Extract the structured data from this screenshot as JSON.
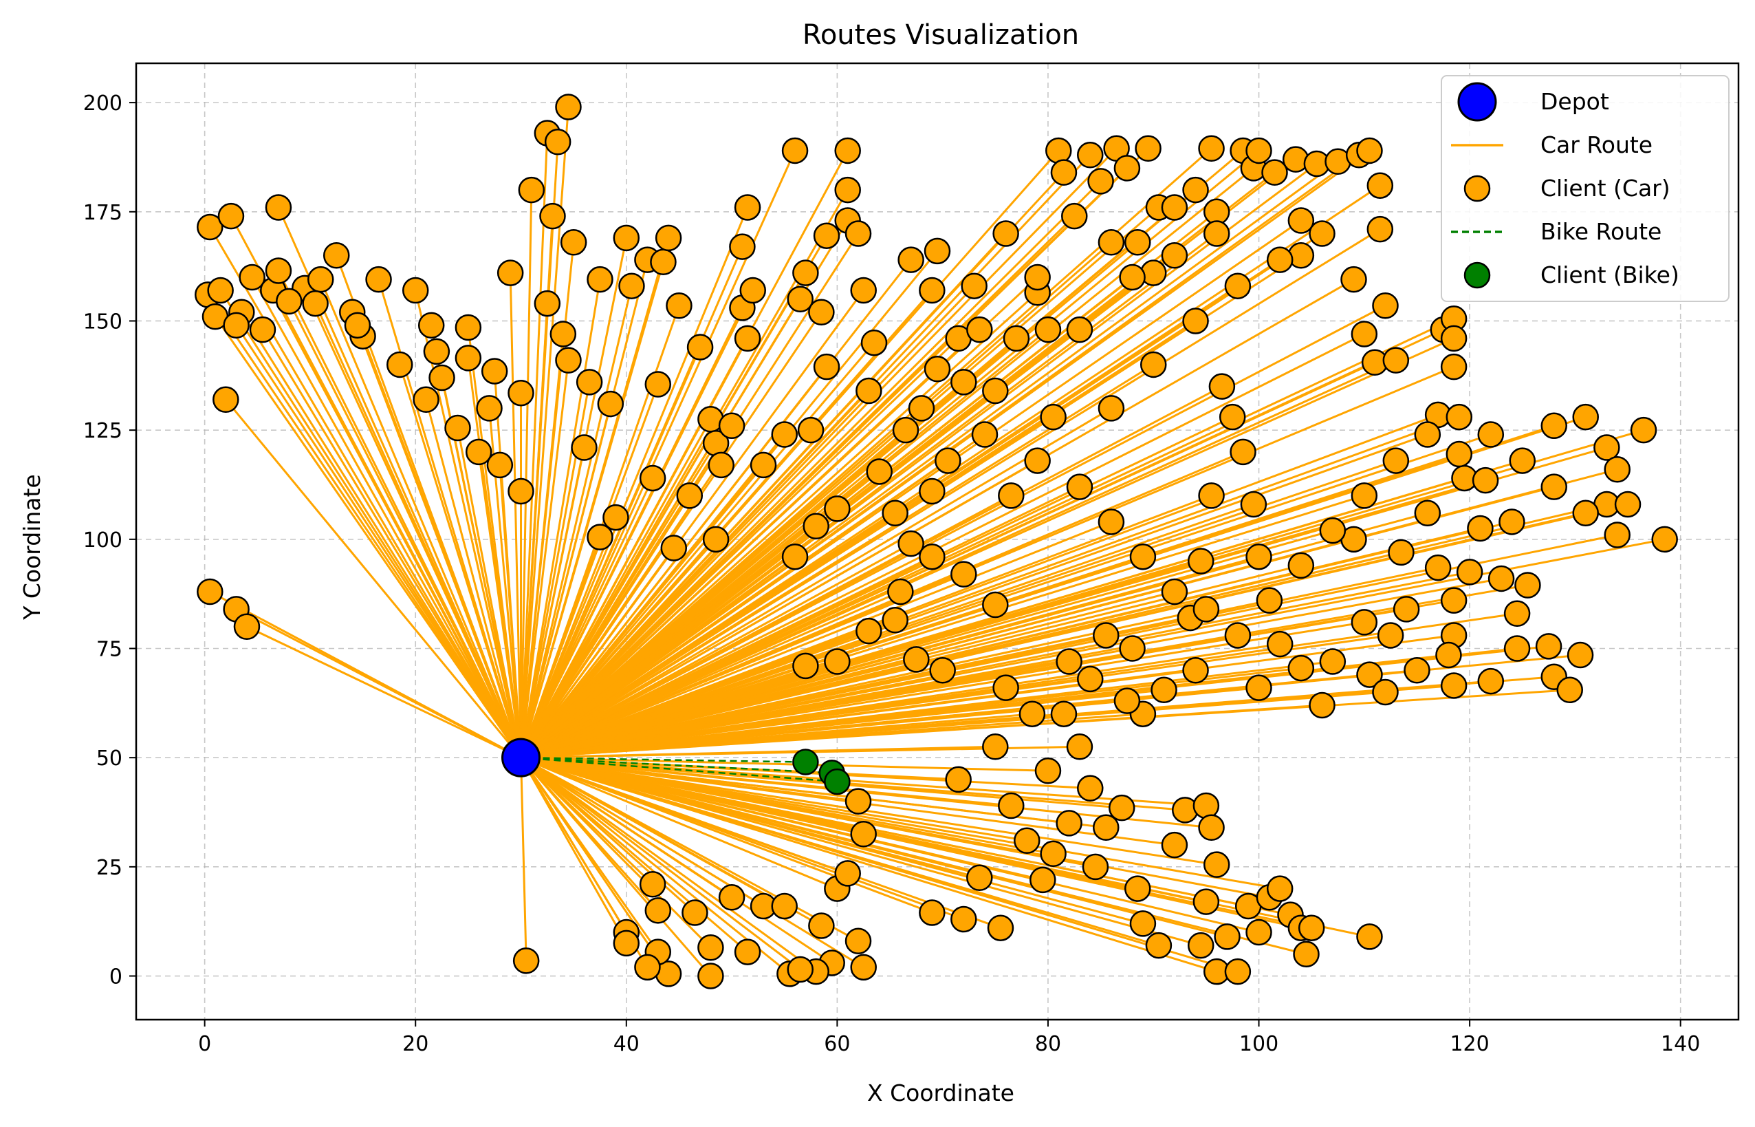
{
  "chart_data": {
    "type": "scatter",
    "title": "Routes Visualization",
    "xlabel": "X Coordinate",
    "ylabel": "Y Coordinate",
    "xlim": [
      -6.5,
      145.5
    ],
    "ylim": [
      -10,
      209
    ],
    "xticks": [
      0,
      20,
      40,
      60,
      80,
      100,
      120,
      140
    ],
    "yticks": [
      0,
      25,
      50,
      75,
      100,
      125,
      150,
      175,
      200
    ],
    "grid": true,
    "legend_position": "top-right",
    "colors": {
      "depot": "#0000ff",
      "car": "#ffa500",
      "bike": "#008000",
      "marker_edge": "#000000"
    },
    "legend": [
      {
        "label": "Depot",
        "kind": "depot-marker"
      },
      {
        "label": "Car Route",
        "kind": "car-line"
      },
      {
        "label": "Client (Car)",
        "kind": "car-marker"
      },
      {
        "label": "Bike Route",
        "kind": "bike-line"
      },
      {
        "label": "Client (Bike)",
        "kind": "bike-marker"
      }
    ],
    "depot": {
      "x": 30,
      "y": 50
    },
    "car_clients": [
      [
        0.5,
        171.5
      ],
      [
        2.5,
        174
      ],
      [
        7,
        176
      ],
      [
        0.3,
        156
      ],
      [
        1,
        151
      ],
      [
        1.5,
        157
      ],
      [
        3.5,
        152
      ],
      [
        4.5,
        160
      ],
      [
        6.5,
        157
      ],
      [
        7,
        161.5
      ],
      [
        9.5,
        157.5
      ],
      [
        11,
        159.5
      ],
      [
        12.5,
        165
      ],
      [
        14,
        152
      ],
      [
        15,
        146.5
      ],
      [
        16.5,
        159.5
      ],
      [
        2,
        132
      ],
      [
        20,
        157
      ],
      [
        21.5,
        149
      ],
      [
        21,
        132
      ],
      [
        22,
        143
      ],
      [
        24,
        125.5
      ],
      [
        25,
        148.5
      ],
      [
        25,
        141.5
      ],
      [
        27.5,
        138.5
      ],
      [
        29,
        161
      ],
      [
        30,
        133.5
      ],
      [
        30,
        111
      ],
      [
        28,
        117
      ],
      [
        32.5,
        193
      ],
      [
        34.5,
        199
      ],
      [
        33.5,
        191
      ],
      [
        31,
        180
      ],
      [
        32.5,
        154
      ],
      [
        34,
        147
      ],
      [
        33,
        174
      ],
      [
        35,
        168
      ],
      [
        37.5,
        159.5
      ],
      [
        36,
        121
      ],
      [
        37.5,
        100.5
      ],
      [
        40,
        169
      ],
      [
        40.5,
        158
      ],
      [
        42,
        164
      ],
      [
        43.5,
        163.5
      ],
      [
        44,
        169
      ],
      [
        43,
        135.5
      ],
      [
        42.5,
        114
      ],
      [
        45,
        153.5
      ],
      [
        47,
        144
      ],
      [
        48,
        127.5
      ],
      [
        48.5,
        122
      ],
      [
        49,
        117
      ],
      [
        50,
        126
      ],
      [
        51,
        167
      ],
      [
        51.5,
        176
      ],
      [
        51,
        153
      ],
      [
        51.5,
        146
      ],
      [
        52,
        157
      ],
      [
        56,
        189
      ],
      [
        56.5,
        155
      ],
      [
        57,
        161
      ],
      [
        58.5,
        152
      ],
      [
        59,
        169.5
      ],
      [
        59,
        139.5
      ],
      [
        61,
        189
      ],
      [
        61,
        180
      ],
      [
        61,
        173
      ],
      [
        62,
        170
      ],
      [
        62.5,
        157
      ],
      [
        63.5,
        145
      ],
      [
        64,
        115.5
      ],
      [
        65.5,
        106
      ],
      [
        67,
        99
      ],
      [
        65.5,
        81.5
      ],
      [
        67.5,
        72.5
      ],
      [
        57,
        71
      ],
      [
        67,
        164
      ],
      [
        69,
        157
      ],
      [
        69.5,
        166
      ],
      [
        69.5,
        139
      ],
      [
        71.5,
        146
      ],
      [
        73,
        158
      ],
      [
        73.5,
        148
      ],
      [
        75,
        134
      ],
      [
        76.5,
        110
      ],
      [
        79,
        156.5
      ],
      [
        80,
        148
      ],
      [
        80.5,
        128
      ],
      [
        81,
        189
      ],
      [
        81.5,
        184
      ],
      [
        82.5,
        174
      ],
      [
        84,
        188
      ],
      [
        85,
        182
      ],
      [
        86,
        168
      ],
      [
        86.5,
        189.5
      ],
      [
        87.5,
        185
      ],
      [
        88.5,
        168
      ],
      [
        89.5,
        189.5
      ],
      [
        90,
        161
      ],
      [
        90.5,
        176
      ],
      [
        92,
        176
      ],
      [
        94,
        180
      ],
      [
        95.5,
        189.5
      ],
      [
        96,
        175
      ],
      [
        98.5,
        189
      ],
      [
        99.5,
        185
      ],
      [
        100,
        189
      ],
      [
        101.5,
        184
      ],
      [
        103.5,
        187
      ],
      [
        104,
        173
      ],
      [
        104,
        165
      ],
      [
        105.5,
        186
      ],
      [
        107.5,
        186.5
      ],
      [
        109.5,
        188
      ],
      [
        110.5,
        189
      ],
      [
        111.5,
        181
      ],
      [
        111.5,
        171
      ],
      [
        109,
        159.5
      ],
      [
        112,
        153.5
      ],
      [
        110,
        147
      ],
      [
        111,
        140.5
      ],
      [
        113,
        141
      ],
      [
        117.5,
        148
      ],
      [
        118.5,
        150.5
      ],
      [
        118.5,
        146
      ],
      [
        118.5,
        139.5
      ],
      [
        119.5,
        114
      ],
      [
        121.5,
        113.5
      ],
      [
        117,
        93.5
      ],
      [
        120,
        92.5
      ],
      [
        121,
        102.5
      ],
      [
        124,
        104
      ],
      [
        123,
        91
      ],
      [
        125.5,
        89.5
      ],
      [
        124.5,
        83
      ],
      [
        118.5,
        86
      ],
      [
        118.5,
        78
      ],
      [
        118,
        73.5
      ],
      [
        118.5,
        66.5
      ],
      [
        122,
        67.5
      ],
      [
        124.5,
        75
      ],
      [
        127.5,
        75.5
      ],
      [
        128,
        68.5
      ],
      [
        130.5,
        73.5
      ],
      [
        129.5,
        65.5
      ],
      [
        128,
        126
      ],
      [
        131,
        128
      ],
      [
        133,
        121
      ],
      [
        134,
        116
      ],
      [
        136.5,
        125
      ],
      [
        133,
        108
      ],
      [
        134,
        101
      ],
      [
        135,
        108
      ],
      [
        138.5,
        100
      ],
      [
        117,
        128.5
      ],
      [
        119,
        119.5
      ],
      [
        116,
        106
      ],
      [
        113.5,
        97
      ],
      [
        114,
        84
      ],
      [
        112.5,
        78
      ],
      [
        110,
        81
      ],
      [
        109,
        100
      ],
      [
        110.5,
        69
      ],
      [
        107,
        72
      ],
      [
        104,
        70.5
      ],
      [
        102,
        76
      ],
      [
        100,
        96
      ],
      [
        99.5,
        108
      ],
      [
        98.5,
        120
      ],
      [
        97.5,
        128
      ],
      [
        96.5,
        135
      ],
      [
        95.5,
        110
      ],
      [
        94.5,
        95
      ],
      [
        93.5,
        82
      ],
      [
        91,
        65.5
      ],
      [
        89,
        60
      ],
      [
        87.5,
        63
      ],
      [
        85.5,
        78
      ],
      [
        84,
        68
      ],
      [
        83,
        52.5
      ],
      [
        81.5,
        60
      ],
      [
        80,
        47
      ],
      [
        80.5,
        28
      ],
      [
        82,
        35
      ],
      [
        84,
        43
      ],
      [
        85.5,
        34
      ],
      [
        87,
        38.5
      ],
      [
        88.5,
        20
      ],
      [
        89,
        12
      ],
      [
        90.5,
        7
      ],
      [
        92,
        30
      ],
      [
        93,
        38
      ],
      [
        95,
        39
      ],
      [
        95.5,
        34
      ],
      [
        96,
        25.5
      ],
      [
        95,
        17
      ],
      [
        94.5,
        7
      ],
      [
        96,
        1
      ],
      [
        97,
        9
      ],
      [
        98,
        1
      ],
      [
        99,
        16
      ],
      [
        100,
        10
      ],
      [
        101,
        18
      ],
      [
        102,
        20
      ],
      [
        103,
        14
      ],
      [
        104,
        11
      ],
      [
        104.5,
        5
      ],
      [
        105,
        11
      ],
      [
        110.5,
        9
      ],
      [
        84.5,
        25
      ],
      [
        79.5,
        22
      ],
      [
        78,
        31
      ],
      [
        76.5,
        39
      ],
      [
        73.5,
        22.5
      ],
      [
        75.5,
        11
      ],
      [
        72,
        13
      ],
      [
        69,
        14.5
      ],
      [
        71.5,
        45
      ],
      [
        75,
        52.5
      ],
      [
        78.5,
        60
      ],
      [
        60,
        20
      ],
      [
        61,
        23.5
      ],
      [
        62.5,
        32.5
      ],
      [
        62,
        40
      ],
      [
        62.5,
        2
      ],
      [
        62,
        8
      ],
      [
        59.5,
        3
      ],
      [
        58,
        1
      ],
      [
        58.5,
        11.5
      ],
      [
        55.5,
        0.5
      ],
      [
        56.5,
        1.5
      ],
      [
        53,
        16
      ],
      [
        55,
        16
      ],
      [
        51.5,
        5.5
      ],
      [
        50,
        18
      ],
      [
        48,
        6.5
      ],
      [
        48,
        0
      ],
      [
        46.5,
        14.5
      ],
      [
        44,
        0.5
      ],
      [
        43,
        5.5
      ],
      [
        42,
        2
      ],
      [
        43,
        15
      ],
      [
        42.5,
        21
      ],
      [
        40,
        10
      ],
      [
        40,
        7.5
      ],
      [
        30.5,
        3.5
      ],
      [
        0.5,
        88
      ],
      [
        3,
        84
      ],
      [
        4,
        80
      ],
      [
        77,
        146
      ],
      [
        72,
        136
      ],
      [
        70.5,
        118
      ],
      [
        69,
        111
      ],
      [
        66.5,
        125
      ],
      [
        60,
        107
      ],
      [
        58,
        103
      ],
      [
        56,
        96
      ],
      [
        55,
        124
      ],
      [
        53,
        117
      ],
      [
        46,
        110
      ],
      [
        48.5,
        100
      ],
      [
        44.5,
        98
      ],
      [
        39,
        105
      ],
      [
        38.5,
        131
      ],
      [
        36.5,
        136
      ],
      [
        34.5,
        141
      ],
      [
        27,
        130
      ],
      [
        26,
        120
      ],
      [
        22.5,
        137
      ],
      [
        18.5,
        140
      ],
      [
        14.5,
        149
      ],
      [
        10.5,
        154
      ],
      [
        8,
        154.5
      ],
      [
        5.5,
        148
      ],
      [
        3,
        149
      ],
      [
        57.5,
        125
      ],
      [
        63,
        134
      ],
      [
        68,
        130
      ],
      [
        74,
        124
      ],
      [
        79,
        118
      ],
      [
        83,
        112
      ],
      [
        86,
        104
      ],
      [
        89,
        96
      ],
      [
        92,
        88
      ],
      [
        95,
        84
      ],
      [
        98,
        78
      ],
      [
        101,
        86
      ],
      [
        104,
        94
      ],
      [
        107,
        102
      ],
      [
        110,
        110
      ],
      [
        113,
        118
      ],
      [
        116,
        124
      ],
      [
        119,
        128
      ],
      [
        122,
        124
      ],
      [
        125,
        118
      ],
      [
        128,
        112
      ],
      [
        131,
        106
      ],
      [
        75,
        85
      ],
      [
        72,
        92
      ],
      [
        69,
        96
      ],
      [
        66,
        88
      ],
      [
        63,
        79
      ],
      [
        60,
        72
      ],
      [
        70,
        70
      ],
      [
        76,
        66
      ],
      [
        82,
        72
      ],
      [
        88,
        75
      ],
      [
        94,
        70
      ],
      [
        100,
        66
      ],
      [
        106,
        62
      ],
      [
        112,
        65
      ],
      [
        115,
        70
      ],
      [
        86,
        130
      ],
      [
        90,
        140
      ],
      [
        94,
        150
      ],
      [
        98,
        158
      ],
      [
        102,
        164
      ],
      [
        106,
        170
      ],
      [
        83,
        148
      ],
      [
        79,
        160
      ],
      [
        76,
        170
      ],
      [
        88,
        160
      ],
      [
        92,
        165
      ],
      [
        96,
        170
      ]
    ],
    "bike_clients": [
      [
        57,
        49
      ],
      [
        59.5,
        46.5
      ],
      [
        60,
        44.5
      ]
    ]
  }
}
